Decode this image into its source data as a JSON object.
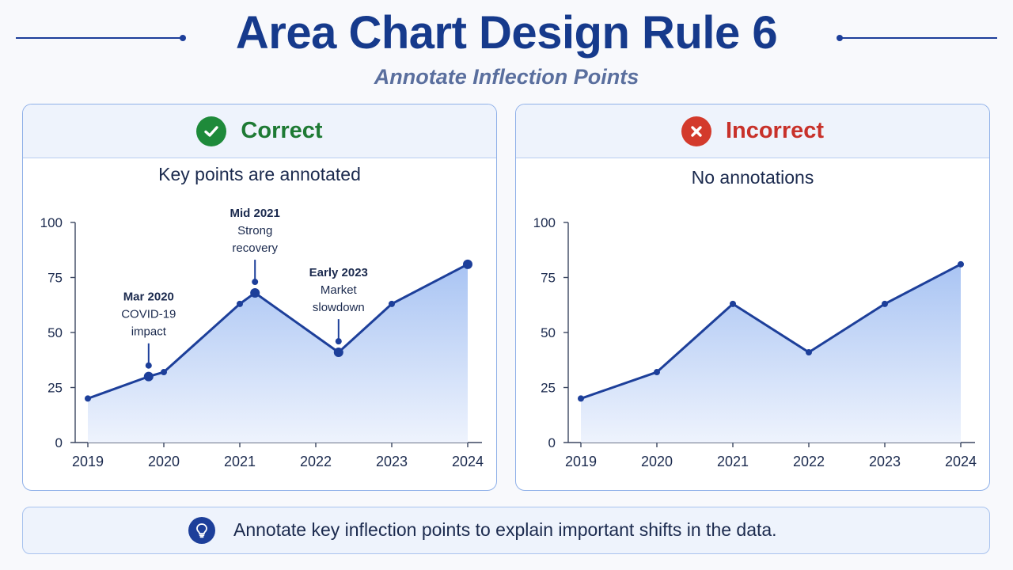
{
  "header": {
    "title": "Area Chart Design Rule 6",
    "subtitle": "Annotate Inflection Points"
  },
  "panels": {
    "correct": {
      "label": "Correct",
      "caption": "Key points are annotated",
      "icon": "check-icon",
      "color": "#1e8a3a"
    },
    "incorrect": {
      "label": "Incorrect",
      "caption": "No annotations",
      "icon": "close-icon",
      "color": "#d33a2c"
    }
  },
  "tip": {
    "icon": "lightbulb-icon",
    "text": "Annotate key inflection points to explain important shifts in the data."
  },
  "colors": {
    "line": "#1d3f9a",
    "area_top": "#a9c4f3",
    "area_bottom": "#eef3fd",
    "axis": "#3b4660"
  },
  "chart_data": [
    {
      "type": "area",
      "panel": "correct",
      "x_ticks": [
        2019,
        2020,
        2021,
        2022,
        2023,
        2024
      ],
      "y_ticks": [
        0,
        25,
        50,
        75,
        100
      ],
      "ylim": [
        0,
        100
      ],
      "xlim": [
        2019,
        2024
      ],
      "x": [
        2019.0,
        2019.8,
        2020.0,
        2021.0,
        2021.2,
        2022.3,
        2023.0,
        2024.0
      ],
      "y": [
        20,
        30,
        32,
        63,
        68,
        41,
        63,
        81
      ],
      "highlight_points": [
        {
          "x": 2019.8,
          "y": 30
        },
        {
          "x": 2021.2,
          "y": 68
        },
        {
          "x": 2022.3,
          "y": 41
        },
        {
          "x": 2024.0,
          "y": 81
        }
      ],
      "annotations": [
        {
          "title": "Mar 2020",
          "lines": [
            "COVID-19",
            "impact"
          ],
          "x": 2019.8,
          "y": 30,
          "pointer_to": 35
        },
        {
          "title": "Mid 2021",
          "lines": [
            "Strong",
            "recovery"
          ],
          "x": 2021.2,
          "y": 68,
          "pointer_to": 73
        },
        {
          "title": "Early 2023",
          "lines": [
            "Market",
            "slowdown"
          ],
          "x": 2022.3,
          "y": 41,
          "pointer_to": 46
        }
      ]
    },
    {
      "type": "area",
      "panel": "incorrect",
      "x_ticks": [
        2019,
        2020,
        2021,
        2022,
        2023,
        2024
      ],
      "y_ticks": [
        0,
        25,
        50,
        75,
        100
      ],
      "ylim": [
        0,
        100
      ],
      "xlim": [
        2019,
        2024
      ],
      "x": [
        2019,
        2020,
        2021,
        2022,
        2023,
        2024
      ],
      "y": [
        20,
        32,
        63,
        41,
        63,
        81
      ],
      "highlight_points": [],
      "annotations": []
    }
  ]
}
